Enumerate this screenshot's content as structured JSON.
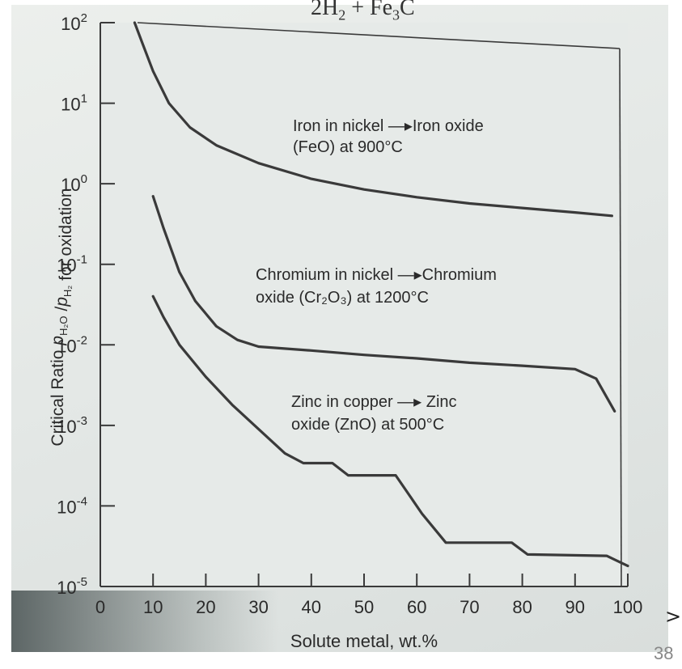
{
  "header_fragment": {
    "text": "2H",
    "sub1": "2",
    "text2": " + Fe",
    "sub2": "3",
    "text3": "C"
  },
  "page_number": "38",
  "next_arrow": ">",
  "chart_data": {
    "type": "line",
    "xlabel": "Solute metal, wt.%",
    "ylabel": {
      "prefix": "Critical Ratio ",
      "p1": "p",
      "p1_sub": "H₂O",
      "slash": " /",
      "p2": "p",
      "p2_sub": "H₂",
      "suffix": " for oxidation"
    },
    "xlim": [
      0,
      100
    ],
    "ylim_log10": [
      -5,
      2
    ],
    "y_scale": "log",
    "x_ticks": [
      "0",
      "10",
      "20",
      "30",
      "40",
      "50",
      "60",
      "70",
      "80",
      "90",
      "100"
    ],
    "y_ticks": [
      {
        "exp": -5,
        "base": "10",
        "sup": "-5"
      },
      {
        "exp": -4,
        "base": "10",
        "sup": "-4"
      },
      {
        "exp": -3,
        "base": "10",
        "sup": "-3"
      },
      {
        "exp": -2,
        "base": "10",
        "sup": "-2"
      },
      {
        "exp": -1,
        "base": "10",
        "sup": "-1"
      },
      {
        "exp": 0,
        "base": "10",
        "sup": "0"
      },
      {
        "exp": 1,
        "base": "10",
        "sup": "1"
      },
      {
        "exp": 2,
        "base": "10",
        "sup": "2"
      }
    ],
    "series": [
      {
        "label": [
          "Iron in nickel —▸Iron oxide",
          "(FeO) at 900°C"
        ],
        "x": [
          6.5,
          8,
          10,
          13,
          17,
          22,
          30,
          40,
          50,
          60,
          70,
          80,
          90,
          97
        ],
        "y": [
          100,
          55,
          25,
          10,
          5,
          3,
          1.8,
          1.15,
          0.85,
          0.68,
          0.57,
          0.5,
          0.44,
          0.4
        ]
      },
      {
        "label": [
          "Chromium in nickel —▸Chromium",
          "oxide (Cr₂O₃) at 1200°C"
        ],
        "x": [
          10,
          12,
          15,
          18,
          22,
          26,
          30,
          40,
          50,
          60,
          70,
          80,
          90,
          94,
          97.5
        ],
        "y": [
          0.7,
          0.28,
          0.08,
          0.035,
          0.017,
          0.0115,
          0.0095,
          0.0085,
          0.0075,
          0.0068,
          0.006,
          0.0055,
          0.005,
          0.0038,
          0.0015
        ]
      },
      {
        "label": [
          "Zinc in copper —▸ Zinc",
          "oxide (ZnO) at 500°C"
        ],
        "x": [
          10,
          12,
          15,
          20,
          25,
          30,
          35,
          38.5,
          44,
          47,
          56,
          61,
          65.5,
          78,
          81,
          96,
          100
        ],
        "y": [
          0.04,
          0.022,
          0.01,
          0.004,
          0.0018,
          0.0009,
          0.00045,
          0.00034,
          0.00034,
          0.00024,
          0.00024,
          8e-05,
          3.5e-05,
          3.5e-05,
          2.5e-05,
          2.4e-05,
          1.8e-05
        ]
      }
    ],
    "line_color": "#3a3a3a",
    "background_color": "#e6eae8"
  }
}
